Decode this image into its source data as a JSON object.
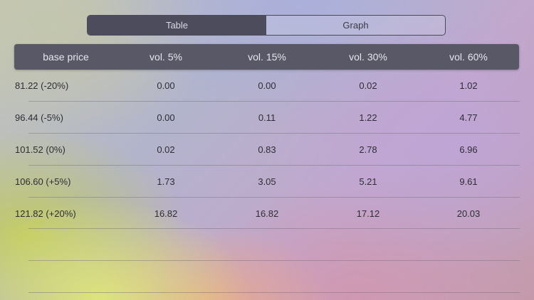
{
  "segmented_control": {
    "segments": [
      {
        "label": "Table",
        "selected": true
      },
      {
        "label": "Graph",
        "selected": false
      }
    ]
  },
  "table": {
    "headers": [
      "base price",
      "vol. 5%",
      "vol. 15%",
      "vol. 30%",
      "vol. 60%"
    ],
    "rows": [
      [
        "81.22 (-20%)",
        "0.00",
        "0.00",
        "0.02",
        "1.02"
      ],
      [
        "96.44 (-5%)",
        "0.00",
        "0.11",
        "1.22",
        "4.77"
      ],
      [
        "101.52 (0%)",
        "0.02",
        "0.83",
        "2.78",
        "6.96"
      ],
      [
        "106.60 (+5%)",
        "1.73",
        "3.05",
        "5.21",
        "9.61"
      ],
      [
        "121.82 (+20%)",
        "16.82",
        "16.82",
        "17.12",
        "20.03"
      ]
    ]
  },
  "colors": {
    "header_background": "#585866",
    "selected_segment": "#4c4c5c"
  }
}
